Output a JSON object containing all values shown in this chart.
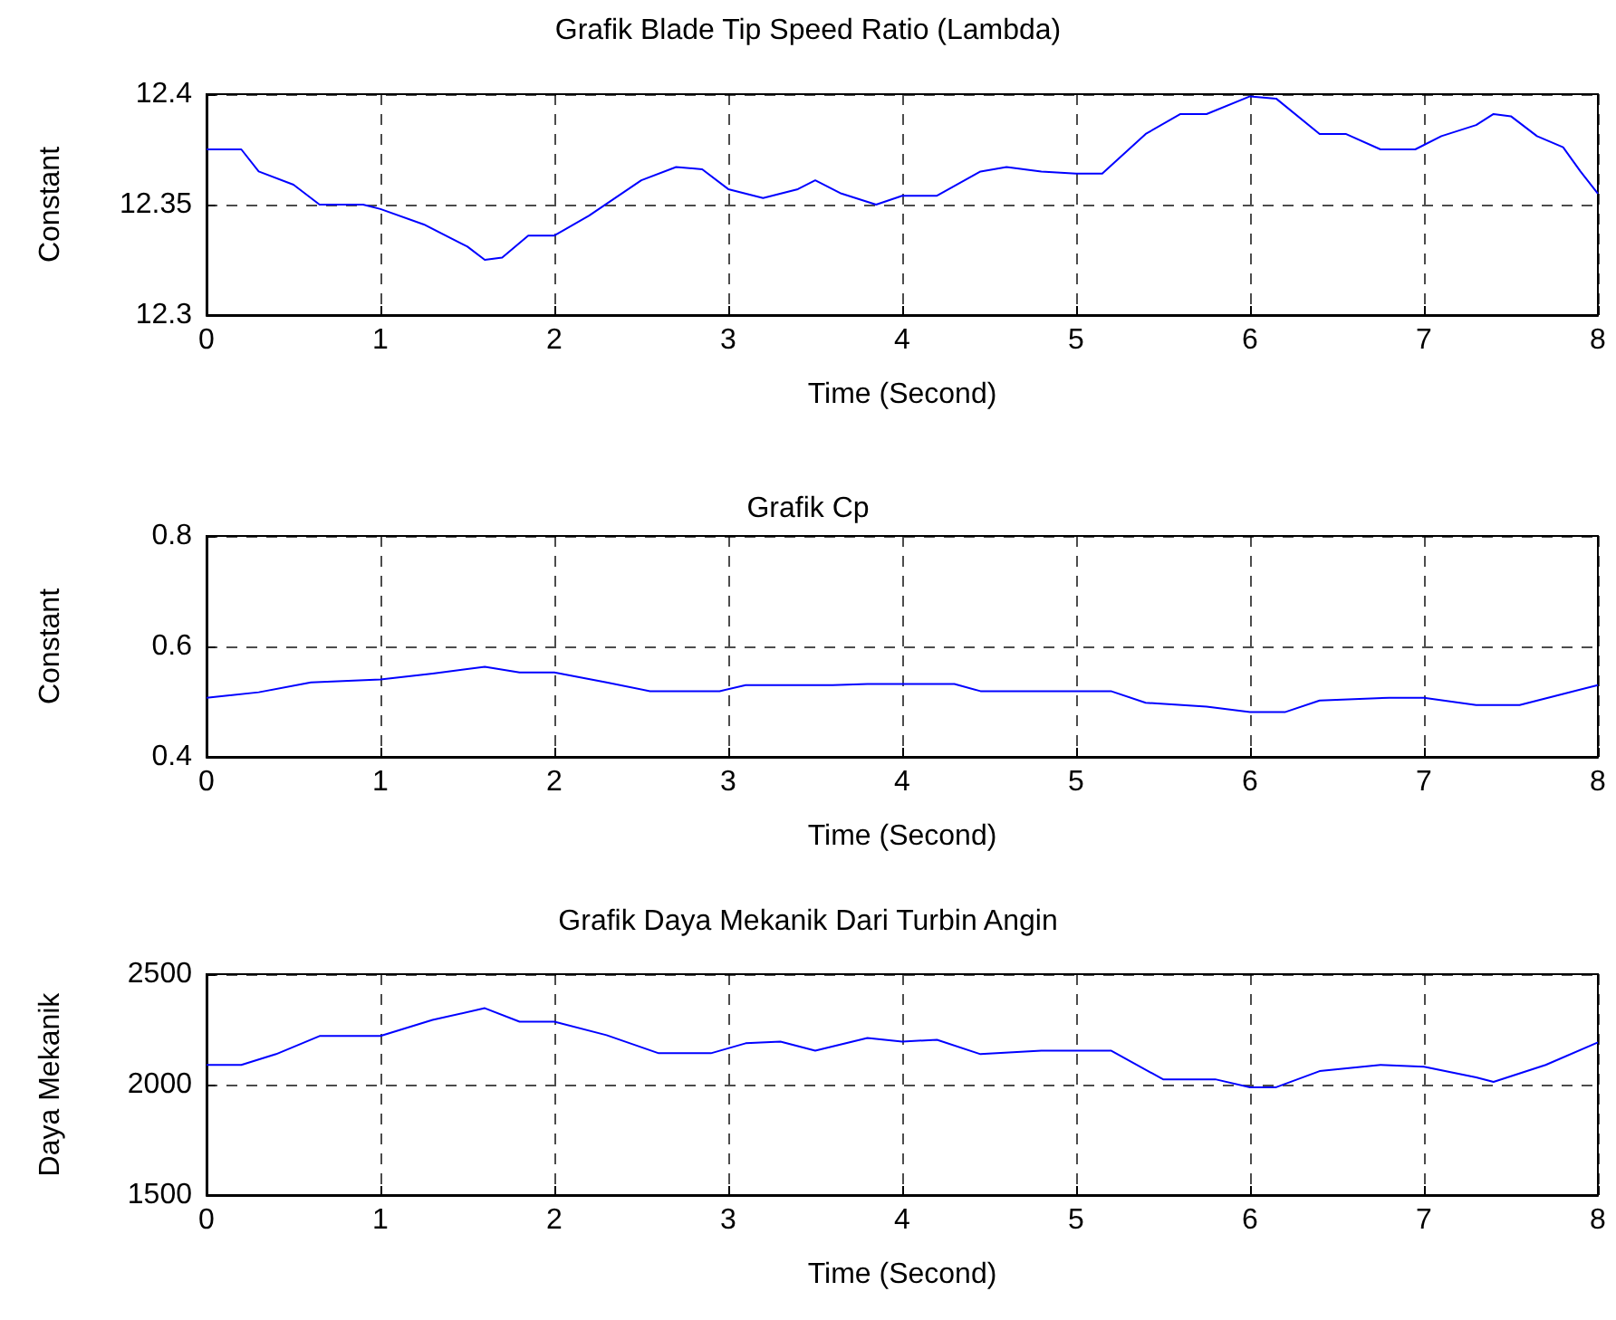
{
  "chart_data": [
    {
      "type": "line",
      "title": "Grafik Blade Tip Speed Ratio (Lambda)",
      "xlabel": "Time (Second)",
      "ylabel": "Constant",
      "x": [
        0,
        0.2,
        0.3,
        0.5,
        0.65,
        0.9,
        1.0,
        1.25,
        1.5,
        1.6,
        1.7,
        1.85,
        2.0,
        2.2,
        2.5,
        2.7,
        2.85,
        3.0,
        3.2,
        3.4,
        3.5,
        3.65,
        3.85,
        4.0,
        4.2,
        4.45,
        4.6,
        4.8,
        5.0,
        5.15,
        5.4,
        5.6,
        5.75,
        6.0,
        6.15,
        6.4,
        6.55,
        6.75,
        6.95,
        7.1,
        7.3,
        7.4,
        7.5,
        7.65,
        7.8,
        7.9,
        8.0
      ],
      "series": [
        {
          "color": "#0000ff",
          "values": [
            12.375,
            12.375,
            12.365,
            12.359,
            12.35,
            12.35,
            12.348,
            12.341,
            12.331,
            12.325,
            12.326,
            12.336,
            12.336,
            12.345,
            12.361,
            12.367,
            12.366,
            12.357,
            12.353,
            12.357,
            12.361,
            12.355,
            12.35,
            12.354,
            12.354,
            12.365,
            12.367,
            12.365,
            12.364,
            12.364,
            12.382,
            12.391,
            12.391,
            12.399,
            12.398,
            12.382,
            12.382,
            12.375,
            12.375,
            12.381,
            12.386,
            12.391,
            12.39,
            12.381,
            12.376,
            12.365,
            12.355
          ]
        }
      ],
      "xlim": [
        0,
        8
      ],
      "xticks": [
        0,
        1,
        2,
        3,
        4,
        5,
        6,
        7,
        8
      ],
      "ylim": [
        12.3,
        12.4
      ],
      "yticks": [
        12.3,
        12.35,
        12.4
      ],
      "grid": true
    },
    {
      "type": "line",
      "title": "Grafik Cp",
      "xlabel": "Time (Second)",
      "ylabel": "Constant",
      "x": [
        0,
        0.3,
        0.6,
        1.0,
        1.3,
        1.6,
        1.8,
        2.0,
        2.3,
        2.55,
        2.95,
        3.1,
        3.6,
        3.8,
        4.3,
        4.45,
        5.2,
        5.4,
        5.75,
        6.0,
        6.2,
        6.4,
        6.8,
        7.0,
        7.3,
        7.55,
        7.8,
        8.0
      ],
      "series": [
        {
          "color": "#0000ff",
          "values": [
            0.507,
            0.517,
            0.535,
            0.54,
            0.551,
            0.563,
            0.553,
            0.553,
            0.535,
            0.519,
            0.519,
            0.53,
            0.53,
            0.532,
            0.532,
            0.519,
            0.519,
            0.498,
            0.491,
            0.481,
            0.481,
            0.502,
            0.507,
            0.507,
            0.494,
            0.494,
            0.514,
            0.53
          ]
        }
      ],
      "xlim": [
        0,
        8
      ],
      "xticks": [
        0,
        1,
        2,
        3,
        4,
        5,
        6,
        7,
        8
      ],
      "ylim": [
        0.4,
        0.8
      ],
      "yticks": [
        0.4,
        0.6,
        0.8
      ],
      "grid": true
    },
    {
      "type": "line",
      "title": "Grafik Daya Mekanik Dari Turbin Angin",
      "xlabel": "Time (Second)",
      "ylabel": "Daya Mekanik",
      "x": [
        0,
        0.2,
        0.4,
        0.65,
        1.0,
        1.3,
        1.6,
        1.8,
        2.0,
        2.3,
        2.6,
        2.9,
        3.1,
        3.3,
        3.5,
        3.8,
        4.0,
        4.2,
        4.45,
        4.8,
        5.2,
        5.5,
        5.8,
        6.0,
        6.15,
        6.4,
        6.75,
        7.0,
        7.3,
        7.4,
        7.7,
        8.0
      ],
      "series": [
        {
          "color": "#0000ff",
          "values": [
            2089,
            2089,
            2138,
            2220,
            2220,
            2293,
            2346,
            2285,
            2285,
            2224,
            2142,
            2142,
            2187,
            2195,
            2154,
            2211,
            2195,
            2203,
            2138,
            2154,
            2154,
            2024,
            2024,
            1988,
            1988,
            2061,
            2089,
            2081,
            2033,
            2012,
            2089,
            2191
          ]
        }
      ],
      "xlim": [
        0,
        8
      ],
      "xticks": [
        0,
        1,
        2,
        3,
        4,
        5,
        6,
        7,
        8
      ],
      "ylim": [
        1500,
        2500
      ],
      "yticks": [
        1500,
        2000,
        2500
      ],
      "grid": true
    }
  ]
}
